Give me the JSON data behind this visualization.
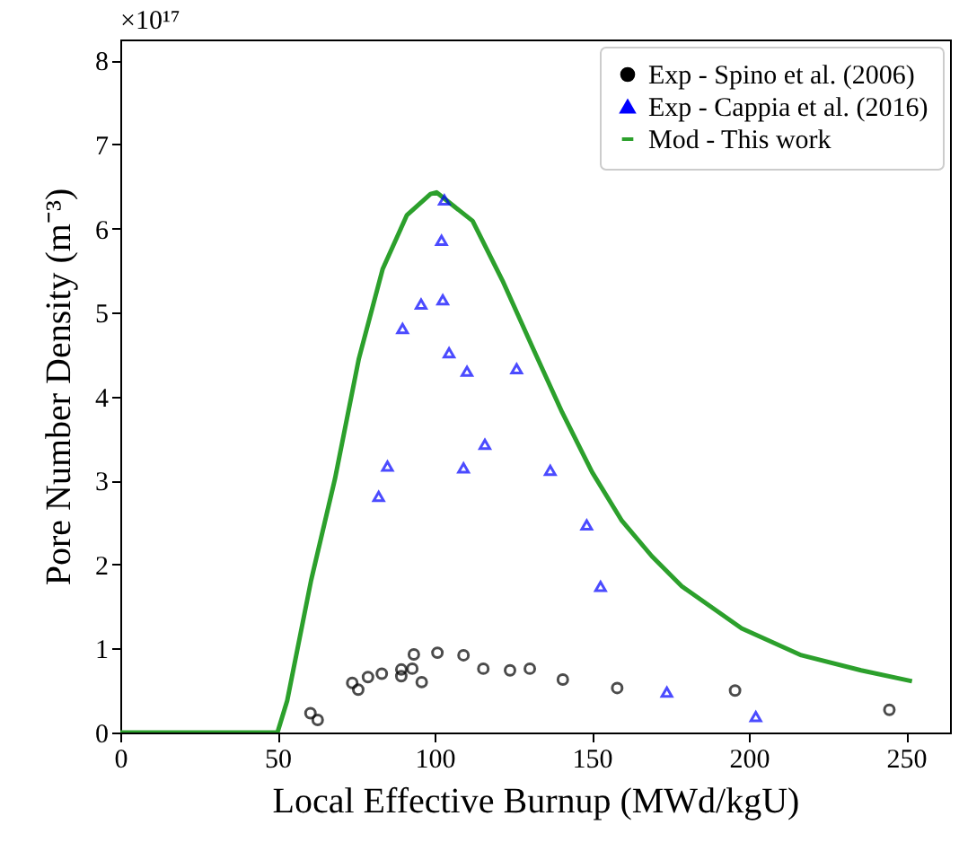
{
  "chart_data": {
    "type": "scatter",
    "xlabel": "Local Effective Burnup (MWd/kgU)",
    "ylabel": "Pore Number Density (m⁻³)",
    "annotations": [
      "×10¹⁷"
    ],
    "xlim": [
      0,
      264
    ],
    "ylim": [
      0,
      8.25
    ],
    "xticks": [
      0,
      50,
      100,
      150,
      200,
      250
    ],
    "yticks": [
      0,
      1,
      2,
      3,
      4,
      5,
      6,
      7,
      8
    ],
    "grid": false,
    "legend": "top right",
    "series": [
      {
        "name": "Exp - Spino et al. (2006)",
        "marker": "circle",
        "color": "#000000",
        "x": [
          60.5,
          62.8,
          73.8,
          75.7,
          78.8,
          83.2,
          89.4,
          89.4,
          92.9,
          93.4,
          95.9,
          100.9,
          109.2,
          115.5,
          124.0,
          130.3,
          140.8,
          158.1,
          195.6,
          244.7
        ],
        "values": [
          0.23,
          0.15,
          0.59,
          0.51,
          0.66,
          0.7,
          0.75,
          0.67,
          0.76,
          0.93,
          0.6,
          0.95,
          0.92,
          0.76,
          0.74,
          0.76,
          0.63,
          0.53,
          0.5,
          0.27
        ]
      },
      {
        "name": "Exp - Cappia et al. (2016)",
        "marker": "triangle",
        "color": "#0000ff",
        "x": [
          82.2,
          85.0,
          89.8,
          95.7,
          103.1,
          102.2,
          102.6,
          104.6,
          110.3,
          126.1,
          116.0,
          109.2,
          136.8,
          148.4,
          152.8,
          173.9,
          202.2
        ],
        "values": [
          2.81,
          3.17,
          4.81,
          5.1,
          6.34,
          5.86,
          5.15,
          4.52,
          4.3,
          4.33,
          3.43,
          3.15,
          3.12,
          2.47,
          1.74,
          0.48,
          0.19
        ]
      },
      {
        "name": "Mod - This work",
        "type": "line",
        "marker": "none",
        "color": "#2ca02c",
        "x": [
          0,
          50,
          53.1,
          60.7,
          68.3,
          75.9,
          83.5,
          91.2,
          98.7,
          100.6,
          112.1,
          121.6,
          131.1,
          140.6,
          150.1,
          159.6,
          169.1,
          178.7,
          197.7,
          216.7,
          235.7,
          251.9
        ],
        "values": [
          0,
          0,
          0.38,
          1.81,
          3.02,
          4.45,
          5.52,
          6.16,
          6.41,
          6.43,
          6.09,
          5.38,
          4.59,
          3.81,
          3.1,
          2.52,
          2.1,
          1.74,
          1.24,
          0.92,
          0.74,
          0.61
        ]
      }
    ]
  }
}
